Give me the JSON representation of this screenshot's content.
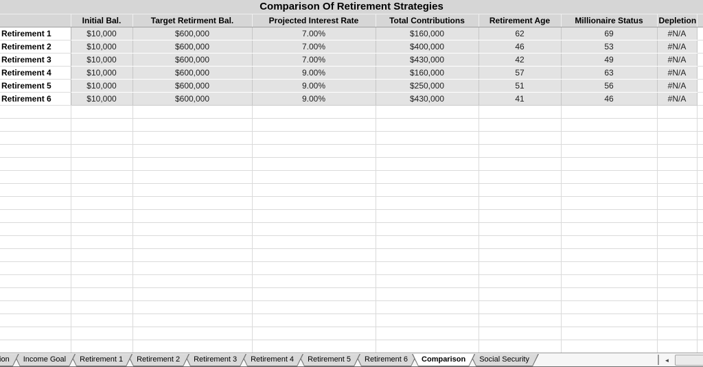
{
  "title": "Comparison Of Retirement Strategies",
  "table": {
    "columns": [
      "Initial Bal.",
      "Target Retirment Bal.",
      "Projected Interest Rate",
      "Total Contributions",
      "Retirement Age",
      "Millionaire Status",
      "Depletion"
    ],
    "rows": [
      {
        "label": "Retirement 1",
        "values": [
          "$10,000",
          "$600,000",
          "7.00%",
          "$160,000",
          "62",
          "69",
          "#N/A"
        ]
      },
      {
        "label": "Retirement 2",
        "values": [
          "$10,000",
          "$600,000",
          "7.00%",
          "$400,000",
          "46",
          "53",
          "#N/A"
        ]
      },
      {
        "label": "Retirement 3",
        "values": [
          "$10,000",
          "$600,000",
          "7.00%",
          "$430,000",
          "42",
          "49",
          "#N/A"
        ]
      },
      {
        "label": "Retirement 4",
        "values": [
          "$10,000",
          "$600,000",
          "9.00%",
          "$160,000",
          "57",
          "63",
          "#N/A"
        ]
      },
      {
        "label": "Retirement 5",
        "values": [
          "$10,000",
          "$600,000",
          "9.00%",
          "$250,000",
          "51",
          "56",
          "#N/A"
        ]
      },
      {
        "label": "Retirement 6",
        "values": [
          "$10,000",
          "$600,000",
          "9.00%",
          "$430,000",
          "41",
          "46",
          "#N/A"
        ]
      }
    ]
  },
  "sheet_tabs": {
    "tabs": [
      {
        "label": "tion",
        "partial": true,
        "active": false
      },
      {
        "label": "Income Goal",
        "active": false
      },
      {
        "label": "Retirement 1",
        "active": false
      },
      {
        "label": "Retirement 2",
        "active": false
      },
      {
        "label": "Retirement 3",
        "active": false
      },
      {
        "label": "Retirement 4",
        "active": false
      },
      {
        "label": "Retirement 5",
        "active": false
      },
      {
        "label": "Retirement 6",
        "active": false
      },
      {
        "label": "Comparison",
        "active": true
      },
      {
        "label": "Social Security",
        "active": false
      }
    ]
  },
  "scrollbar": {
    "left_arrow": "◄"
  },
  "colors": {
    "header_bg": "#d6d6d6",
    "data_row_bg": "#e3e3e3",
    "grid_line": "#dadada",
    "tab_bg": "#d9d9d9",
    "active_tab_bg": "#ffffff"
  }
}
